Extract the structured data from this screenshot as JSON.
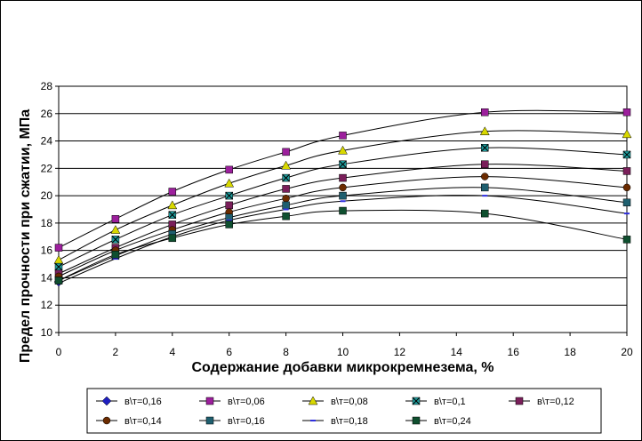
{
  "chart_data": {
    "type": "line",
    "title": "",
    "xlabel": "Содержание добавки микрокремнезема, %",
    "ylabel": "Предел прочности при сжатии, МПа",
    "xlim": [
      0,
      20
    ],
    "ylim": [
      10,
      28
    ],
    "xticks": [
      0,
      2,
      4,
      6,
      8,
      10,
      12,
      14,
      16,
      18,
      20
    ],
    "yticks": [
      10,
      12,
      14,
      16,
      18,
      20,
      22,
      24,
      26,
      28
    ],
    "grid": "horizontal",
    "legend_position": "bottom",
    "series": [
      {
        "name": "в\\т=0,16",
        "color": "#1f1fbf",
        "marker": "diamond",
        "x": [
          0
        ],
        "y": [
          13.7
        ]
      },
      {
        "name": "в\\т=0,06",
        "color": "#9c1f9c",
        "marker": "square",
        "x": [
          0,
          2,
          4,
          6,
          8,
          10,
          15,
          20
        ],
        "y": [
          16.2,
          18.3,
          20.3,
          21.9,
          23.2,
          24.4,
          26.1,
          26.1
        ]
      },
      {
        "name": "в\\т=0,08",
        "color": "#d8d800",
        "marker": "triangle",
        "x": [
          0,
          2,
          4,
          6,
          8,
          10,
          15,
          20
        ],
        "y": [
          15.3,
          17.5,
          19.3,
          20.9,
          22.2,
          23.3,
          24.7,
          24.5
        ]
      },
      {
        "name": "в\\т=0,1",
        "color": "#1f9c9c",
        "marker": "xsquare",
        "x": [
          0,
          2,
          4,
          6,
          8,
          10,
          15,
          20
        ],
        "y": [
          14.8,
          16.8,
          18.6,
          20.0,
          21.3,
          22.3,
          23.5,
          23.0
        ]
      },
      {
        "name": "в\\т=0,12",
        "color": "#7a1f5a",
        "marker": "square",
        "x": [
          0,
          2,
          4,
          6,
          8,
          10,
          15,
          20
        ],
        "y": [
          14.3,
          16.2,
          17.9,
          19.3,
          20.5,
          21.3,
          22.3,
          21.8
        ]
      },
      {
        "name": "в\\т=0,14",
        "color": "#6b2b00",
        "marker": "circle",
        "x": [
          0,
          2,
          4,
          6,
          8,
          10,
          15,
          20
        ],
        "y": [
          14.1,
          16.0,
          17.5,
          18.8,
          19.8,
          20.6,
          21.4,
          20.6
        ]
      },
      {
        "name": "в\\т=0,16",
        "color": "#1f5f6f",
        "marker": "square",
        "x": [
          0,
          2,
          4,
          6,
          8,
          10,
          15,
          20
        ],
        "y": [
          13.8,
          15.6,
          17.2,
          18.4,
          19.3,
          20.0,
          20.6,
          19.5
        ]
      },
      {
        "name": "в\\т=0,18",
        "color": "#2f2fdf",
        "marker": "dash",
        "x": [
          0,
          2,
          4,
          6,
          8,
          10,
          15,
          20
        ],
        "y": [
          13.6,
          15.4,
          17.0,
          18.2,
          19.0,
          19.6,
          20.0,
          18.7
        ]
      },
      {
        "name": "в\\т=0,24",
        "color": "#0f4f2f",
        "marker": "square",
        "x": [
          0,
          2,
          4,
          6,
          8,
          10,
          15,
          20
        ],
        "y": [
          13.8,
          15.7,
          16.9,
          17.9,
          18.5,
          18.9,
          18.7,
          16.8
        ]
      }
    ]
  }
}
